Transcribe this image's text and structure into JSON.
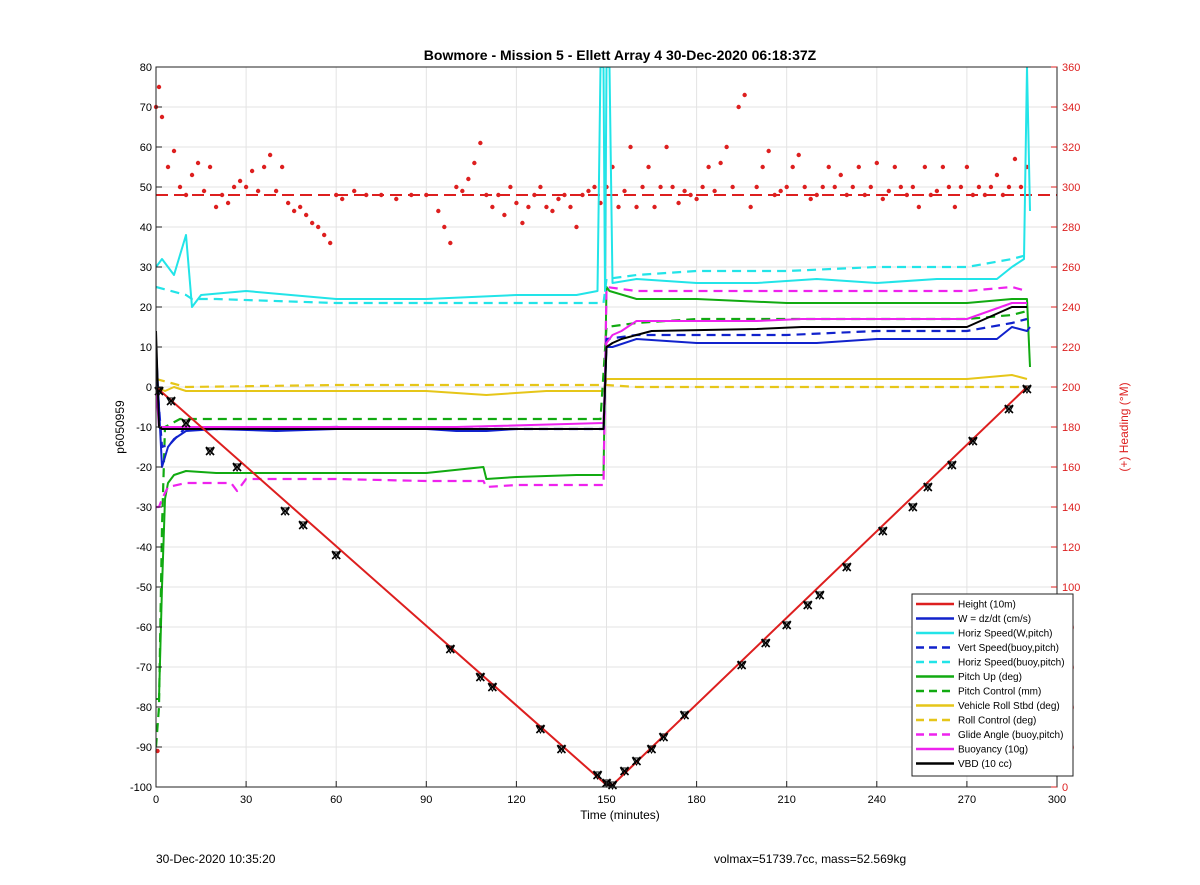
{
  "chart_data": {
    "type": "line",
    "title": "Bowmore - Mission 5 - Ellett Array 4 30-Dec-2020 06:18:37Z",
    "xlabel": "Time (minutes)",
    "ylabel_left": "p6050959",
    "ylabel_right": "(+) Heading (°M)",
    "xlim": [
      0,
      300
    ],
    "ylim_left": [
      -100,
      80
    ],
    "ylim_right": [
      0,
      360
    ],
    "xticks": [
      0,
      30,
      60,
      90,
      120,
      150,
      180,
      210,
      240,
      270,
      300
    ],
    "yticks_left": [
      -100,
      -90,
      -80,
      -70,
      -60,
      -50,
      -40,
      -30,
      -20,
      -10,
      0,
      10,
      20,
      30,
      40,
      50,
      60,
      70,
      80
    ],
    "yticks_right": [
      0,
      20,
      40,
      60,
      80,
      100,
      120,
      140,
      160,
      180,
      200,
      220,
      240,
      260,
      280,
      300,
      320,
      340,
      360
    ],
    "grid": true,
    "legend_position": "bottom-right",
    "series": [
      {
        "name": "Height (10m)",
        "color": "#dd1f1f",
        "style": "solid",
        "x": [
          0,
          150,
          152,
          290
        ],
        "y": [
          0,
          -99.5,
          -99.5,
          0
        ]
      },
      {
        "name": "W = dz/dt (cm/s)",
        "color": "#1122cc",
        "style": "solid",
        "x": [
          0,
          2,
          4,
          6,
          10,
          20,
          40,
          60,
          90,
          100,
          110,
          120,
          140,
          149,
          150,
          152,
          160,
          180,
          200,
          220,
          240,
          260,
          280,
          285,
          290,
          291
        ],
        "y": [
          10,
          -20,
          -15,
          -13,
          -11,
          -10.5,
          -11,
          -10.5,
          -10.5,
          -11,
          -11,
          -10.5,
          -10.5,
          -10.5,
          10,
          10,
          12,
          11,
          11,
          11,
          12,
          12,
          12,
          15,
          14,
          15
        ]
      },
      {
        "name": "Horiz Speed(W,pitch)",
        "color": "#22e4e8",
        "style": "solid",
        "x": [
          0,
          2,
          6,
          10,
          12,
          15,
          30,
          60,
          90,
          120,
          140,
          147,
          148,
          149,
          149.5,
          150,
          151,
          152,
          160,
          180,
          200,
          220,
          240,
          260,
          280,
          285,
          289,
          290,
          291
        ],
        "y": [
          30,
          32,
          28,
          38,
          20,
          23,
          24,
          22,
          22,
          23,
          23,
          24,
          80,
          80,
          24,
          80,
          80,
          26,
          27,
          26,
          26,
          27,
          26,
          27,
          27,
          30,
          32,
          80,
          44
        ]
      },
      {
        "name": "Vert Speed(buoy,pitch)",
        "color": "#1122cc",
        "style": "dashed",
        "x": [
          0,
          2,
          5,
          10,
          20,
          60,
          100,
          149,
          150,
          160,
          180,
          210,
          240,
          270,
          285,
          290
        ],
        "y": [
          5,
          -15,
          -14,
          -10,
          -10.5,
          -10,
          -10.5,
          -10.5,
          12,
          13,
          13,
          13,
          14,
          14,
          16,
          17
        ]
      },
      {
        "name": "Horiz Speed(buoy,pitch)",
        "color": "#22e4e8",
        "style": "dashed",
        "x": [
          0,
          10,
          12,
          20,
          60,
          100,
          120,
          149,
          150,
          160,
          180,
          210,
          240,
          270,
          285,
          290
        ],
        "y": [
          25,
          23,
          22,
          22,
          21,
          21,
          21,
          21,
          27,
          28,
          29,
          29,
          30,
          30,
          32,
          33
        ]
      },
      {
        "name": "Pitch Up (deg)",
        "color": "#11aa11",
        "style": "solid",
        "x": [
          0,
          1,
          2,
          3,
          4,
          6,
          10,
          20,
          30,
          60,
          90,
          109,
          110,
          120,
          140,
          149,
          150,
          151,
          160,
          180,
          210,
          240,
          270,
          285,
          290,
          291
        ],
        "y": [
          -78,
          -78,
          -50,
          -28,
          -24,
          -22,
          -21,
          -21.5,
          -21.5,
          -21.5,
          -21.5,
          -20,
          -23,
          -22.5,
          -22,
          -22,
          25,
          24,
          22,
          22,
          21,
          21,
          21,
          22,
          22,
          5
        ]
      },
      {
        "name": "Pitch Control (mm)",
        "color": "#11aa11",
        "style": "dashed",
        "x": [
          0,
          1,
          2,
          3,
          8,
          60,
          90,
          148,
          150,
          160,
          180,
          240,
          270,
          285,
          290
        ],
        "y": [
          -90,
          -80,
          -35,
          -10,
          -8,
          -8,
          -8,
          -8,
          15,
          16,
          17,
          17,
          17,
          18,
          19
        ]
      },
      {
        "name": "Vehicle Roll Stbd (deg)",
        "color": "#e6c619",
        "style": "solid",
        "x": [
          0,
          3,
          6,
          10,
          30,
          60,
          90,
          110,
          130,
          149,
          150,
          160,
          180,
          210,
          240,
          270,
          285,
          290
        ],
        "y": [
          0,
          -1,
          0,
          -1,
          -1,
          -1,
          -1,
          -2,
          -1,
          -1,
          2,
          2,
          2,
          2,
          2,
          2,
          3,
          2
        ]
      },
      {
        "name": "Roll Control (deg)",
        "color": "#e6c619",
        "style": "dashed",
        "x": [
          0,
          5,
          10,
          60,
          90,
          150,
          160,
          200,
          240,
          280,
          290
        ],
        "y": [
          2,
          1,
          0,
          0.5,
          0.5,
          0.5,
          0,
          0,
          0,
          0,
          0
        ]
      },
      {
        "name": "Glide Angle (buoy,pitch)",
        "color": "#ee22ee",
        "style": "dashed",
        "x": [
          0,
          1,
          2,
          4,
          10,
          25,
          27,
          30,
          60,
          90,
          109,
          110,
          120,
          149,
          150,
          160,
          180,
          210,
          240,
          270,
          285,
          290
        ],
        "y": [
          -30,
          -30,
          -28,
          -25,
          -24,
          -24,
          -26,
          -23,
          -23,
          -23.5,
          -23.5,
          -25,
          -24.5,
          -24.5,
          25,
          24,
          24,
          24,
          24,
          24,
          25,
          24
        ]
      },
      {
        "name": "Buoyancy (10g)",
        "color": "#ee22ee",
        "style": "solid",
        "x": [
          0,
          1,
          2,
          20,
          60,
          100,
          149,
          150,
          152,
          155,
          160,
          200,
          215,
          240,
          270,
          285,
          290
        ],
        "y": [
          0,
          -10,
          -10,
          -10,
          -10,
          -10,
          -9,
          11,
          13,
          14,
          16.5,
          16.5,
          17,
          17,
          17,
          21,
          21
        ]
      },
      {
        "name": "VBD (10 cc)",
        "color": "#000000",
        "style": "solid",
        "x": [
          0,
          1,
          2,
          60,
          100,
          149,
          150,
          152,
          155,
          160,
          165,
          200,
          215,
          240,
          270,
          285,
          290
        ],
        "y": [
          14,
          -10,
          -10.5,
          -10.5,
          -10.5,
          -10.5,
          10,
          11,
          12,
          13,
          14,
          14.5,
          15,
          15,
          15,
          20,
          20
        ]
      }
    ],
    "heading_series": {
      "name": "(+) Heading (°M)",
      "color": "#dd1f1f",
      "mean": 296,
      "x": [
        0,
        1,
        2,
        4,
        6,
        8,
        10,
        12,
        14,
        16,
        18,
        20,
        22,
        24,
        26,
        28,
        30,
        32,
        34,
        36,
        38,
        40,
        42,
        44,
        46,
        48,
        50,
        52,
        54,
        56,
        58,
        60,
        62,
        66,
        70,
        75,
        80,
        85,
        90,
        94,
        96,
        98,
        100,
        102,
        104,
        106,
        108,
        110,
        112,
        114,
        116,
        118,
        120,
        122,
        124,
        126,
        128,
        130,
        132,
        134,
        136,
        138,
        140,
        142,
        144,
        146,
        148,
        150,
        152,
        154,
        156,
        158,
        160,
        162,
        164,
        166,
        168,
        170,
        172,
        174,
        176,
        178,
        180,
        182,
        184,
        186,
        188,
        190,
        192,
        194,
        196,
        198,
        200,
        202,
        204,
        206,
        208,
        210,
        212,
        214,
        216,
        218,
        220,
        222,
        224,
        226,
        228,
        230,
        232,
        234,
        236,
        238,
        240,
        242,
        244,
        246,
        248,
        250,
        252,
        254,
        256,
        258,
        260,
        262,
        264,
        266,
        268,
        270,
        272,
        274,
        276,
        278,
        280,
        282,
        284,
        286,
        288,
        290
      ],
      "y": [
        340,
        350,
        335,
        310,
        318,
        300,
        296,
        306,
        312,
        298,
        310,
        290,
        296,
        292,
        300,
        303,
        300,
        308,
        298,
        310,
        316,
        298,
        310,
        292,
        288,
        290,
        286,
        282,
        280,
        276,
        272,
        296,
        294,
        298,
        296,
        296,
        294,
        296,
        296,
        288,
        280,
        272,
        300,
        298,
        304,
        312,
        322,
        296,
        290,
        296,
        286,
        300,
        292,
        282,
        290,
        296,
        300,
        290,
        288,
        294,
        296,
        290,
        280,
        296,
        298,
        300,
        292,
        300,
        310,
        290,
        298,
        320,
        290,
        300,
        310,
        290,
        300,
        320,
        300,
        292,
        298,
        296,
        294,
        300,
        310,
        298,
        312,
        320,
        300,
        340,
        346,
        290,
        300,
        310,
        318,
        296,
        298,
        300,
        310,
        316,
        300,
        294,
        296,
        300,
        310,
        300,
        306,
        296,
        300,
        310,
        296,
        300,
        312,
        294,
        298,
        310,
        300,
        296,
        300,
        290,
        310,
        296,
        298,
        310,
        300,
        290,
        300,
        310,
        296,
        300,
        296,
        300,
        306,
        296,
        300,
        314,
        300,
        310
      ]
    },
    "markers": {
      "x": [
        1,
        5,
        10,
        18,
        27,
        43,
        49,
        60,
        98,
        108,
        112,
        128,
        135,
        147,
        150,
        152,
        156,
        160,
        165,
        169,
        176,
        195,
        203,
        210,
        217,
        221,
        230,
        242,
        252,
        257,
        265,
        272,
        284,
        290
      ],
      "y": [
        -1,
        -3.5,
        -9,
        -16,
        -20,
        -31,
        -34.5,
        -42,
        -65.5,
        -72.5,
        -75,
        -85.5,
        -90.5,
        -97,
        -99,
        -99.5,
        -96,
        -93.5,
        -90.5,
        -87.5,
        -82,
        -69.5,
        -64,
        -59.5,
        -54.5,
        -52,
        -45,
        -36,
        -30,
        -25,
        -19.5,
        -13.5,
        -5.5,
        -0.5
      ]
    },
    "outlier_points": [
      {
        "x": 0.5,
        "y_left": -91
      }
    ]
  },
  "footer": {
    "timestamp": "30-Dec-2020 10:35:20",
    "params": "volmax=51739.7cc, mass=52.569kg"
  }
}
